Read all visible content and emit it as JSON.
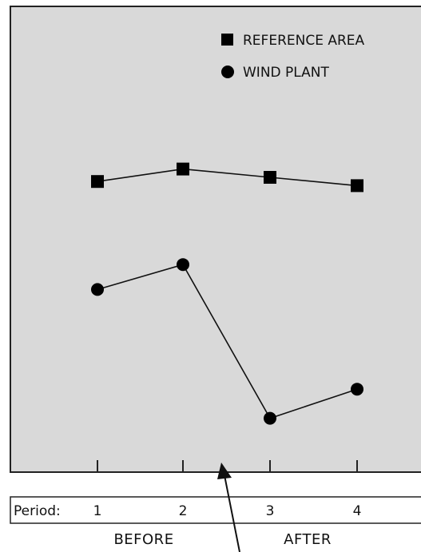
{
  "chart_data": {
    "type": "line",
    "x": [
      1,
      2,
      3,
      4
    ],
    "series": [
      {
        "name": "REFERENCE AREA",
        "marker": "square",
        "values": [
          64,
          67,
          65,
          63
        ]
      },
      {
        "name": "WIND PLANT",
        "marker": "circle",
        "values": [
          38,
          44,
          7,
          14
        ]
      }
    ],
    "ylim": [
      0,
      100
    ],
    "grid": false,
    "legend_position": "top-right",
    "background_color": "#d9d9d9",
    "line_color": "#111111",
    "axis_label_prefix": "Period:",
    "phase_labels": [
      "BEFORE",
      "AFTER"
    ],
    "annotation": "arrow-marking-treatment-between-period-2-and-3"
  }
}
